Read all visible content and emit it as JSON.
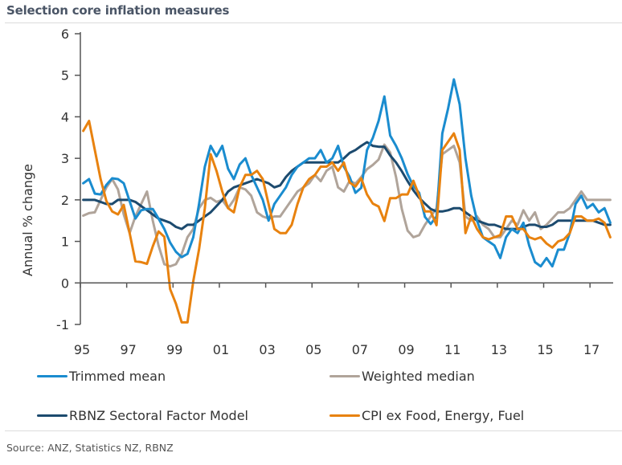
{
  "title": "Selection core inflation measures",
  "source": "Source: ANZ, Statistics NZ, RBNZ",
  "chart_data": {
    "type": "line",
    "title": "Selection core inflation measures",
    "xlabel": "",
    "ylabel": "Annual % change",
    "ylim": [
      -1,
      6
    ],
    "xlim": [
      1995,
      2018
    ],
    "yticks": [
      -1,
      0,
      1,
      2,
      3,
      4,
      5,
      6
    ],
    "ytick_labels": [
      "-1",
      "0",
      "1",
      "2",
      "3",
      "4",
      "5",
      "6"
    ],
    "xticks": [
      1995,
      1997,
      1999,
      2001,
      2003,
      2005,
      2007,
      2009,
      2011,
      2013,
      2015,
      2017
    ],
    "xtick_labels": [
      "95",
      "97",
      "99",
      "01",
      "03",
      "05",
      "07",
      "09",
      "11",
      "13",
      "15",
      "17"
    ],
    "grid": false,
    "legend_position": "bottom",
    "frequency": "quarterly",
    "x_start": "1995Q1",
    "x_end": "2017Q4",
    "series": [
      {
        "name": "Trimmed mean",
        "color": "#1a8ccf",
        "values": [
          2.4,
          2.5,
          2.15,
          2.13,
          2.36,
          2.52,
          2.5,
          2.4,
          1.97,
          1.55,
          1.75,
          1.78,
          1.78,
          1.55,
          1.3,
          0.97,
          0.75,
          0.62,
          0.7,
          1.1,
          1.9,
          2.8,
          3.3,
          3.05,
          3.3,
          2.75,
          2.5,
          2.85,
          3.0,
          2.6,
          2.3,
          2.0,
          1.5,
          1.9,
          2.1,
          2.3,
          2.6,
          2.8,
          2.9,
          3.0,
          3.0,
          3.2,
          2.9,
          3.0,
          3.3,
          2.8,
          2.55,
          2.17,
          2.29,
          3.2,
          3.49,
          3.9,
          4.49,
          3.55,
          3.3,
          3.0,
          2.62,
          2.33,
          2.17,
          1.59,
          1.42,
          1.6,
          3.6,
          4.2,
          4.9,
          4.3,
          3.0,
          2.1,
          1.5,
          1.1,
          1.0,
          0.9,
          0.6,
          1.1,
          1.3,
          1.2,
          1.45,
          0.9,
          0.5,
          0.4,
          0.6,
          0.4,
          0.8,
          0.8,
          1.2,
          1.9,
          2.1,
          1.8,
          1.9,
          1.7,
          1.8,
          1.45
        ]
      },
      {
        "name": "Weighted median",
        "color": "#b0a49a",
        "values": [
          1.62,
          1.68,
          1.7,
          2.0,
          2.3,
          2.5,
          2.25,
          1.65,
          1.2,
          1.6,
          1.9,
          2.2,
          1.5,
          0.9,
          0.45,
          0.4,
          0.45,
          0.7,
          1.1,
          1.3,
          1.8,
          2.0,
          2.05,
          1.95,
          2.0,
          1.8,
          2.0,
          2.3,
          2.25,
          2.1,
          1.7,
          1.6,
          1.55,
          1.6,
          1.6,
          1.8,
          2.0,
          2.2,
          2.3,
          2.4,
          2.6,
          2.45,
          2.7,
          2.8,
          2.3,
          2.2,
          2.46,
          2.39,
          2.55,
          2.74,
          2.84,
          2.97,
          3.33,
          3.14,
          2.55,
          1.78,
          1.26,
          1.1,
          1.15,
          1.4,
          1.6,
          1.8,
          3.1,
          3.2,
          3.3,
          2.9,
          1.6,
          1.5,
          1.6,
          1.4,
          1.3,
          1.1,
          1.1,
          1.3,
          1.5,
          1.4,
          1.75,
          1.5,
          1.7,
          1.3,
          1.4,
          1.55,
          1.7,
          1.7,
          1.8,
          2.0,
          2.2,
          2.0,
          2.0,
          2.0,
          2.0,
          2.0
        ]
      },
      {
        "name": "RBNZ Sectoral Factor Model",
        "color": "#1c4a6e",
        "values": [
          2.0,
          2.0,
          2.0,
          1.95,
          1.9,
          1.9,
          2.0,
          2.0,
          2.0,
          1.95,
          1.85,
          1.75,
          1.65,
          1.55,
          1.5,
          1.45,
          1.35,
          1.3,
          1.4,
          1.4,
          1.5,
          1.6,
          1.7,
          1.85,
          2.0,
          2.2,
          2.3,
          2.35,
          2.4,
          2.45,
          2.5,
          2.45,
          2.4,
          2.3,
          2.35,
          2.55,
          2.7,
          2.8,
          2.9,
          2.9,
          2.9,
          2.9,
          2.9,
          2.9,
          2.9,
          3.0,
          3.13,
          3.2,
          3.3,
          3.39,
          3.3,
          3.28,
          3.28,
          3.07,
          2.9,
          2.69,
          2.45,
          2.23,
          2.05,
          1.91,
          1.78,
          1.72,
          1.72,
          1.75,
          1.8,
          1.8,
          1.7,
          1.6,
          1.5,
          1.45,
          1.4,
          1.4,
          1.35,
          1.3,
          1.3,
          1.3,
          1.35,
          1.4,
          1.4,
          1.35,
          1.35,
          1.4,
          1.5,
          1.5,
          1.5,
          1.5,
          1.5,
          1.5,
          1.5,
          1.45,
          1.4,
          1.4
        ]
      },
      {
        "name": "CPI ex Food, Energy, Fuel",
        "color": "#e8820f",
        "values": [
          3.66,
          3.9,
          3.2,
          2.5,
          1.97,
          1.72,
          1.65,
          1.88,
          1.2,
          0.52,
          0.5,
          0.46,
          0.88,
          1.24,
          1.11,
          -0.15,
          -0.5,
          -0.95,
          -0.95,
          0.04,
          0.81,
          1.8,
          3.1,
          2.7,
          2.2,
          1.8,
          1.7,
          2.3,
          2.6,
          2.6,
          2.7,
          2.5,
          1.9,
          1.3,
          1.2,
          1.2,
          1.4,
          1.9,
          2.3,
          2.5,
          2.6,
          2.8,
          2.8,
          2.9,
          2.7,
          2.9,
          2.42,
          2.32,
          2.52,
          2.13,
          1.91,
          1.84,
          1.49,
          2.04,
          2.04,
          2.13,
          2.13,
          2.46,
          2.1,
          1.72,
          1.72,
          1.39,
          3.2,
          3.4,
          3.6,
          3.2,
          1.2,
          1.6,
          1.3,
          1.1,
          1.05,
          1.1,
          1.15,
          1.6,
          1.6,
          1.3,
          1.3,
          1.1,
          1.05,
          1.1,
          0.95,
          0.85,
          1.0,
          1.05,
          1.2,
          1.6,
          1.6,
          1.5,
          1.5,
          1.55,
          1.45,
          1.1
        ]
      }
    ]
  },
  "legend": [
    {
      "label": "Trimmed mean",
      "color": "#1a8ccf"
    },
    {
      "label": "Weighted median",
      "color": "#b0a49a"
    },
    {
      "label": "RBNZ Sectoral Factor Model",
      "color": "#1c4a6e"
    },
    {
      "label": "CPI ex Food, Energy, Fuel",
      "color": "#e8820f"
    }
  ]
}
